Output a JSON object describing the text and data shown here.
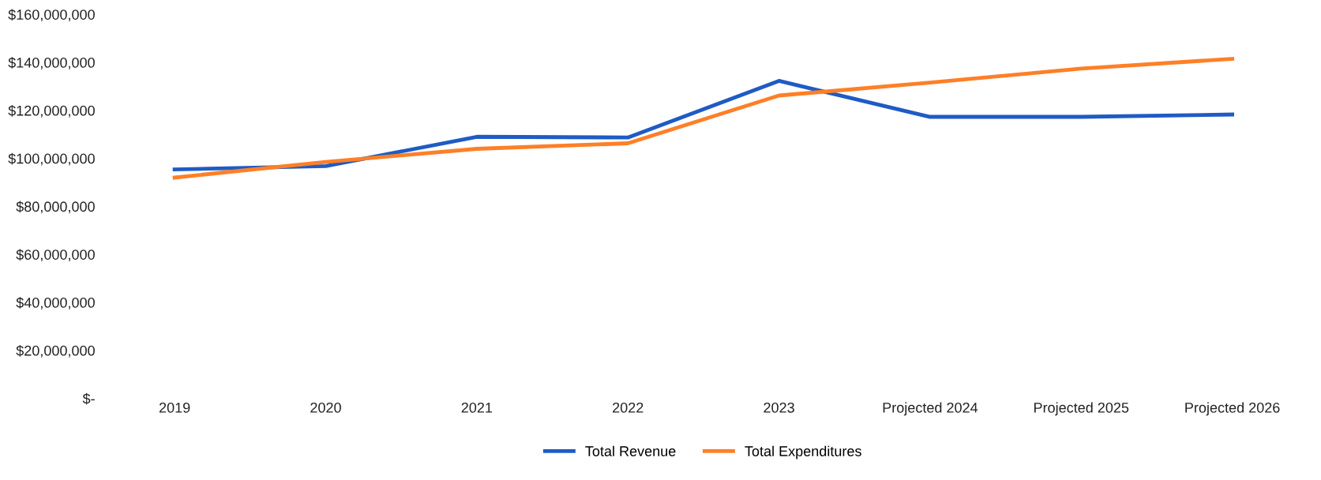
{
  "chart_data": {
    "type": "line",
    "categories": [
      "2019",
      "2020",
      "2021",
      "2022",
      "2023",
      "Projected 2024",
      "Projected 2025",
      "Projected 2026"
    ],
    "series": [
      {
        "name": "Total Revenue",
        "color": "#1f5bc4",
        "values": [
          95400000,
          96800000,
          109000000,
          108700000,
          132300000,
          117300000,
          117300000,
          118300000
        ]
      },
      {
        "name": "Total Expenditures",
        "color": "#ff7f27",
        "values": [
          92000000,
          98500000,
          104000000,
          106300000,
          126200000,
          131600000,
          137400000,
          141500000
        ]
      }
    ],
    "ylim": [
      0,
      160000000
    ],
    "yticks": [
      {
        "value": 0,
        "label": "$-"
      },
      {
        "value": 20000000,
        "label": "$20,000,000"
      },
      {
        "value": 40000000,
        "label": "$40,000,000"
      },
      {
        "value": 60000000,
        "label": "$60,000,000"
      },
      {
        "value": 80000000,
        "label": "$80,000,000"
      },
      {
        "value": 100000000,
        "label": "$100,000,000"
      },
      {
        "value": 120000000,
        "label": "$120,000,000"
      },
      {
        "value": 140000000,
        "label": "$140,000,000"
      },
      {
        "value": 160000000,
        "label": "$160,000,000"
      }
    ],
    "legend": "bottom",
    "marker": "none",
    "line_style": "solid"
  }
}
